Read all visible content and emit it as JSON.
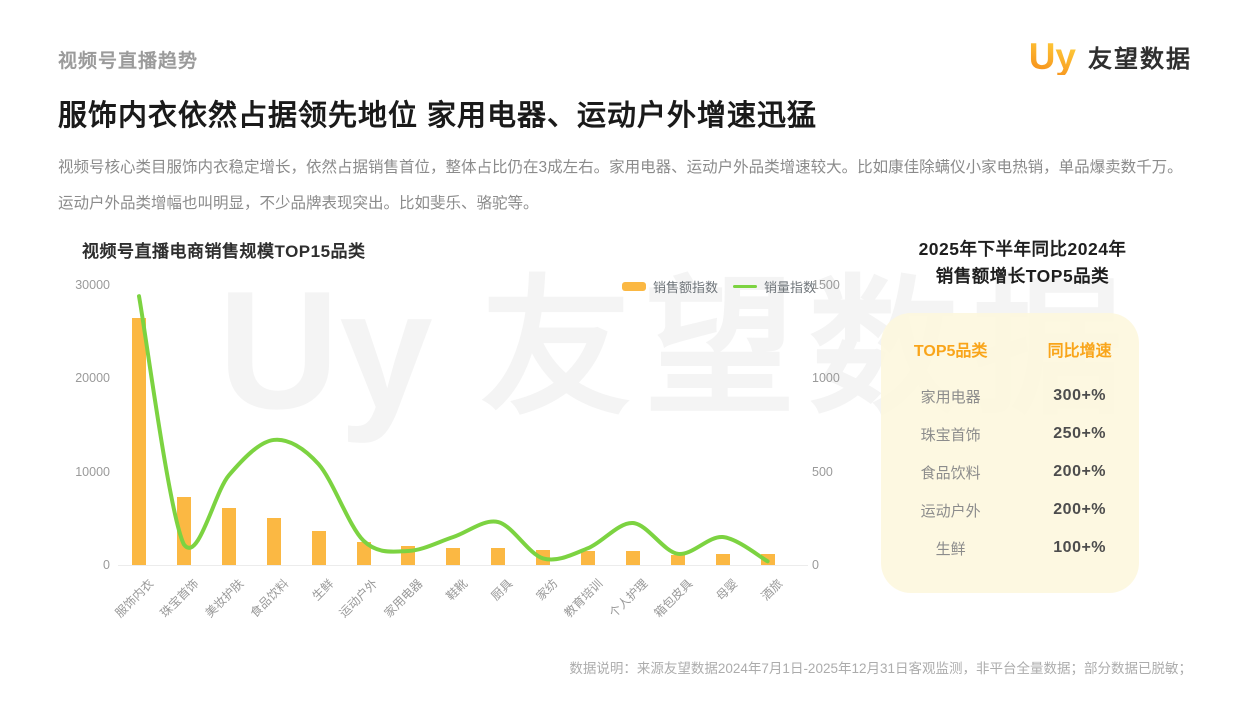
{
  "header": {
    "eyebrow": "视频号直播趋势",
    "logo_mark": "Uy",
    "logo_text": "友望数据"
  },
  "title": "服饰内衣依然占据领先地位 家用电器、运动户外增速迅猛",
  "description": "视频号核心类目服饰内衣稳定增长，依然占据销售首位，整体占比仍在3成左右。家用电器、运动户外品类增速较大。比如康佳除螨仪小家电热销，单品爆卖数千万。运动户外品类增幅也叫明显，不少品牌表现突出。比如斐乐、骆驼等。",
  "watermark": {
    "mark": "Uy",
    "text": "友望数据"
  },
  "chart_data": {
    "type": "bar+line",
    "title": "视频号直播电商销售规模TOP15品类",
    "categories": [
      "服饰内衣",
      "珠宝首饰",
      "美妆护肤",
      "食品饮料",
      "生鲜",
      "运动户外",
      "家用电器",
      "鞋靴",
      "厨具",
      "家纺",
      "教育培训",
      "个人护理",
      "箱包皮具",
      "母婴",
      "酒旅"
    ],
    "series": [
      {
        "name": "销售额指数",
        "type": "bar",
        "axis": "left",
        "color": "#FBB843",
        "values": [
          26500,
          7300,
          6100,
          5000,
          3600,
          2500,
          2050,
          1800,
          1800,
          1600,
          1500,
          1450,
          1050,
          1230,
          1150
        ]
      },
      {
        "name": "销量指数",
        "type": "line",
        "axis": "right",
        "color": "#7CD341",
        "values": [
          1440,
          110,
          480,
          670,
          540,
          130,
          75,
          150,
          230,
          35,
          90,
          225,
          60,
          150,
          20
        ]
      }
    ],
    "left_axis": {
      "ticks": [
        0,
        10000,
        20000,
        30000
      ],
      "max": 30000
    },
    "right_axis": {
      "ticks": [
        0,
        500,
        1000,
        1500
      ],
      "max": 1500
    },
    "grid": false,
    "legend_position": "top-right"
  },
  "panel": {
    "title_line1": "2025年下半年同比2024年",
    "title_line2": "销售额增长TOP5品类",
    "table": {
      "headers": [
        "TOP5品类",
        "同比增速"
      ],
      "rows": [
        {
          "category": "家用电器",
          "growth": "300+%"
        },
        {
          "category": "珠宝首饰",
          "growth": "250+%"
        },
        {
          "category": "食品饮料",
          "growth": "200+%"
        },
        {
          "category": "运动户外",
          "growth": "200+%"
        },
        {
          "category": "生鲜",
          "growth": "100+%"
        }
      ]
    }
  },
  "footer": "数据说明：来源友望数据2024年7月1日-2025年12月31日客观监测，非平台全量数据；部分数据已脱敏；"
}
